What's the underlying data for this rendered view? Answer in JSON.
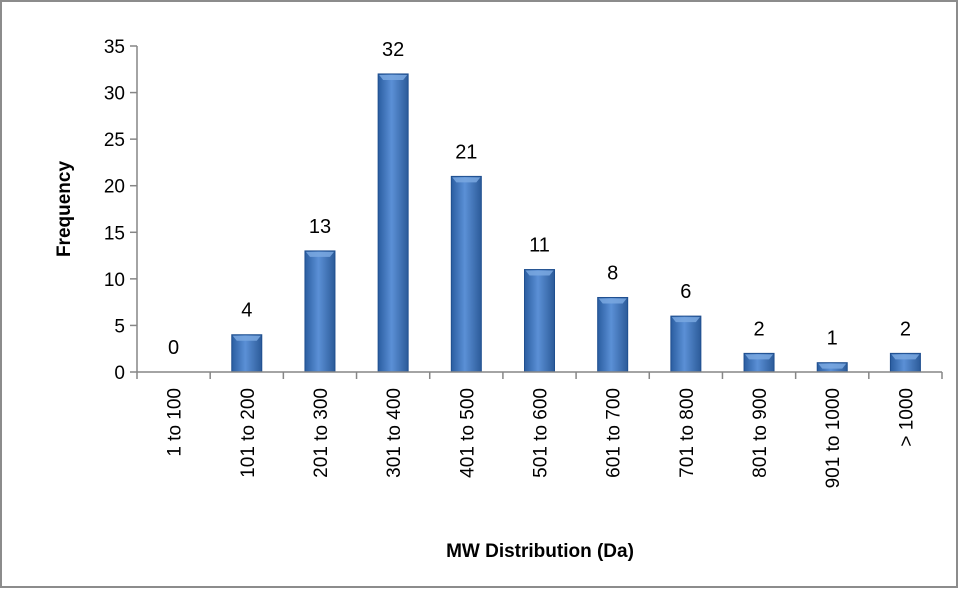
{
  "chart_data": {
    "type": "bar",
    "categories": [
      "1 to 100",
      "101 to 200",
      "201 to 300",
      "301 to 400",
      "401 to 500",
      "501 to 600",
      "601 to 700",
      "701 to 800",
      "801 to 900",
      "901 to 1000",
      "> 1000"
    ],
    "values": [
      0,
      4,
      13,
      32,
      21,
      11,
      8,
      6,
      2,
      1,
      2
    ],
    "data_labels": [
      "0",
      "4",
      "13",
      "32",
      "21",
      "11",
      "8",
      "6",
      "2",
      "1",
      "2"
    ],
    "yticks": [
      "0",
      "5",
      "10",
      "15",
      "20",
      "25",
      "30",
      "35"
    ],
    "ylim": [
      0,
      35
    ],
    "xlabel": "MW Distribution  (Da)",
    "ylabel": "Frequency",
    "grid": false,
    "legend": "none",
    "colors": {
      "bar": "#4a7ebb",
      "bar_dark": "#1f4f8f",
      "bar_light": "#7aa8e0",
      "axis": "#868686",
      "frame": "#8c8c8c"
    }
  }
}
